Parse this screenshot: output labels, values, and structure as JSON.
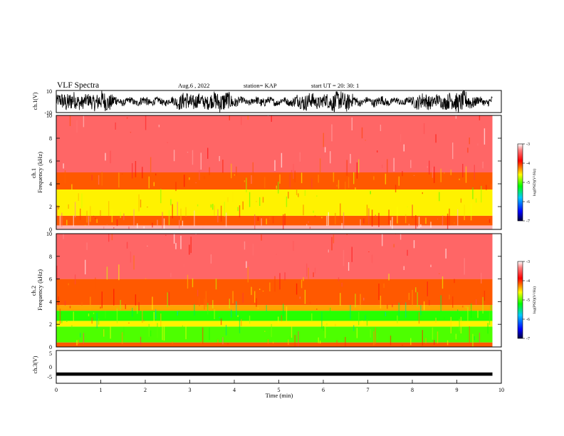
{
  "header": {
    "title": "VLF Spectra",
    "date": "Aug.6  , 2022",
    "station": "station= KAP",
    "start": "start  UT  =   20: 30: 1"
  },
  "chart_data": [
    {
      "type": "line",
      "panel": "ch1-waveform",
      "ylabel": "ch.1(V)",
      "ylim": [
        -10,
        10
      ],
      "ytick_labels": [
        "10",
        "-10"
      ],
      "xlim": [
        0,
        10
      ],
      "description_values": "dense waveform oscillating between about -8 and +9 V over 0-9.8 min",
      "color": "#000000"
    },
    {
      "type": "heatmap",
      "panel": "ch1-spectrogram",
      "ylabel": "ch.1\nFrequency (kHz)",
      "ylim": [
        0,
        10
      ],
      "yticks": [
        0,
        2,
        4,
        6,
        8,
        10
      ],
      "xlim": [
        0,
        10
      ],
      "data_xmax": 9.8,
      "bands": [
        {
          "from": 0.0,
          "to": 0.35,
          "level": -3.2
        },
        {
          "from": 0.35,
          "to": 1.2,
          "level": -3.9
        },
        {
          "from": 1.2,
          "to": 3.5,
          "level": -4.3
        },
        {
          "from": 3.5,
          "to": 5.0,
          "level": -3.9
        },
        {
          "from": 5.0,
          "to": 10.0,
          "level": -3.4
        }
      ],
      "colorbar": {
        "label": "log(PSD)(V²/Hz)",
        "ticks": [
          "-3",
          "-4",
          "-5",
          "-6",
          "-7"
        ],
        "range": [
          -7,
          -3
        ]
      }
    },
    {
      "type": "heatmap",
      "panel": "ch2-spectrogram",
      "ylabel": "ch.2\nFrequency (kHz)",
      "ylim": [
        0,
        10
      ],
      "yticks": [
        0,
        2,
        4,
        6,
        8,
        10
      ],
      "xlim": [
        0,
        10
      ],
      "data_xmax": 9.8,
      "bands": [
        {
          "from": 0.0,
          "to": 0.4,
          "level": -3.9
        },
        {
          "from": 0.4,
          "to": 1.8,
          "level": -4.8
        },
        {
          "from": 1.8,
          "to": 2.3,
          "level": -4.3
        },
        {
          "from": 2.3,
          "to": 3.2,
          "level": -4.9
        },
        {
          "from": 3.2,
          "to": 3.7,
          "level": -4.1
        },
        {
          "from": 3.7,
          "to": 6.0,
          "level": -3.9
        },
        {
          "from": 6.0,
          "to": 10.0,
          "level": -3.4
        }
      ],
      "colorbar": {
        "label": "log(PSD)(V²/Hz)",
        "ticks": [
          "-3",
          "-4",
          "-5",
          "-6",
          "-7"
        ],
        "range": [
          -7,
          -3
        ]
      }
    },
    {
      "type": "line",
      "panel": "ch3-waveform",
      "ylabel": "ch.3(V)",
      "ylim": [
        -5,
        5
      ],
      "ytick_labels": [
        "5",
        "0",
        "-5"
      ],
      "xlim": [
        0,
        10
      ],
      "xlabel": "Time  (min)",
      "xtick_labels": [
        "0",
        "1",
        "2",
        "3",
        "4",
        "5",
        "6",
        "7",
        "8",
        "9",
        "10"
      ],
      "band_center": -2.2,
      "band_halfwidth": 0.5,
      "color": "#000000"
    }
  ],
  "colors": {
    "colormap": [
      "#00003c",
      "#0000ff",
      "#00c8ff",
      "#00ff00",
      "#ffff00",
      "#ff0000",
      "#ffffff"
    ],
    "axes": "#000000"
  }
}
